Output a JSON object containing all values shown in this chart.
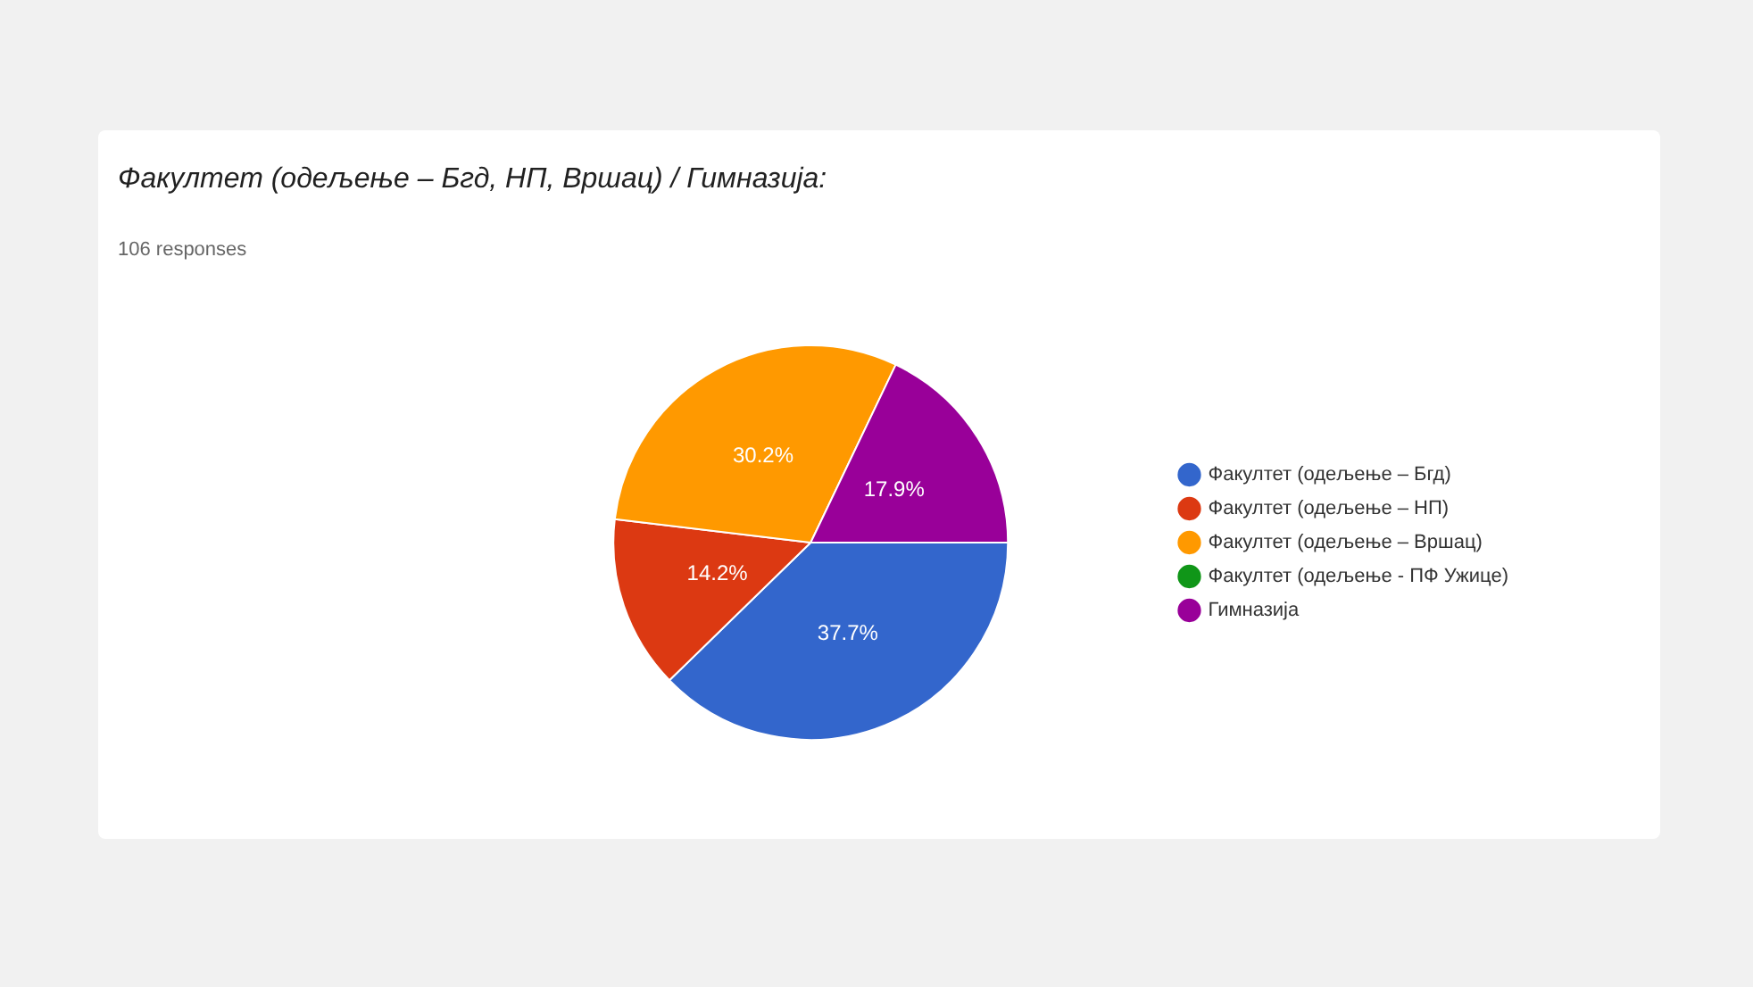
{
  "chart_data": {
    "type": "pie",
    "title": "Факултет (одељење – Бгд, НП, Вршац) / Гимназија:",
    "subtitle": "106 responses",
    "categories": [
      "Факултет (одељење – Бгд)",
      "Факултет (одељење – НП)",
      "Факултет (одељење – Вршац)",
      "Факултет (одељење - ПФ Ужице)",
      "Гимназија"
    ],
    "values": [
      37.7,
      14.2,
      30.2,
      0,
      17.9
    ],
    "colors": [
      "#3366cc",
      "#dc3912",
      "#ff9900",
      "#109618",
      "#990099"
    ],
    "value_labels": [
      "37.7%",
      "14.2%",
      "30.2%",
      null,
      "17.9%"
    ],
    "legend": "right"
  }
}
